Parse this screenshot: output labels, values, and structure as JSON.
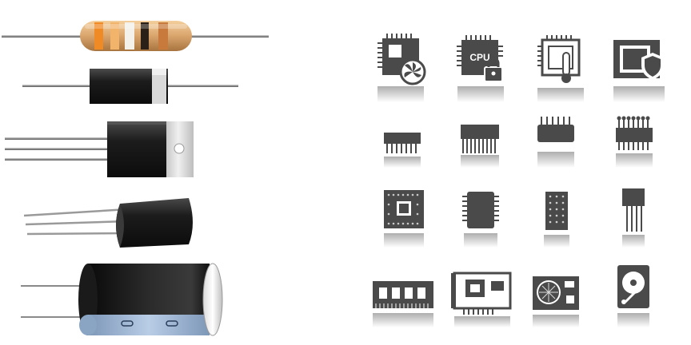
{
  "components": {
    "resistor": {
      "band_colors": [
        "#f08a24",
        "#f2b36a",
        "#f3f1ea",
        "#2a2017",
        "#c77a3c"
      ],
      "body_color": "#d9a46c"
    },
    "diode": {
      "body_color": "#1f1f1f",
      "band_color": "#d9d9d9"
    },
    "regulator": {
      "tab_color": "#cfcfcf",
      "body_color": "#222222"
    },
    "transistor": {
      "body_color": "#1e1e1e"
    },
    "capacitor": {
      "sleeve_color": "#161616",
      "stripe_color": "#9bb6d6"
    }
  },
  "icons": {
    "icon_color": "#4a4a4a",
    "cpu_label": "CPU"
  }
}
